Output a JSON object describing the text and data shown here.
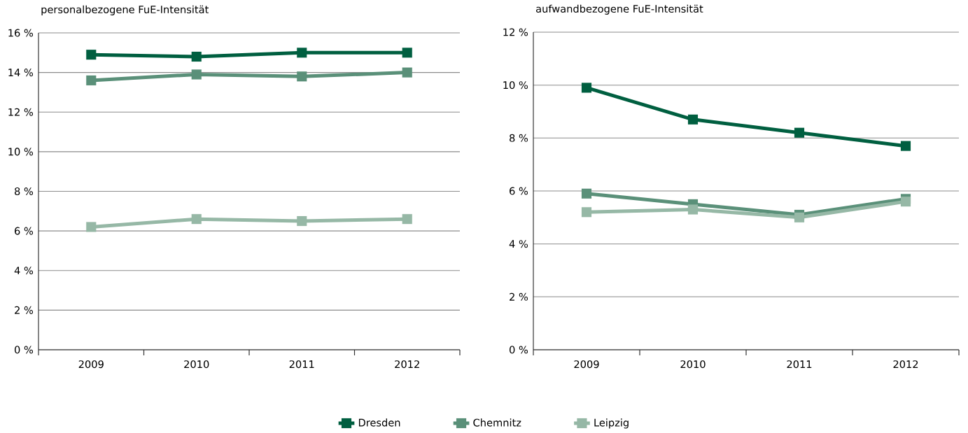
{
  "chart_data": [
    {
      "type": "line",
      "title": "personalbezogene FuE-Intensität",
      "categories": [
        "2009",
        "2010",
        "2011",
        "2012"
      ],
      "series": [
        {
          "name": "Dresden",
          "color": "#005f40",
          "values": [
            14.9,
            14.8,
            15.0,
            15.0
          ]
        },
        {
          "name": "Chemnitz",
          "color": "#5a9079",
          "values": [
            13.6,
            13.9,
            13.8,
            14.0
          ]
        },
        {
          "name": "Leipzig",
          "color": "#96b8a6",
          "values": [
            6.2,
            6.6,
            6.5,
            6.6
          ]
        }
      ],
      "ylim": [
        0,
        16
      ],
      "yticks": [
        {
          "value": 0,
          "label": "0 %"
        },
        {
          "value": 2,
          "label": "2 %"
        },
        {
          "value": 4,
          "label": "4 %"
        },
        {
          "value": 6,
          "label": "6 %"
        },
        {
          "value": 8,
          "label": "8 %"
        },
        {
          "value": 10,
          "label": "10 %"
        },
        {
          "value": 12,
          "label": "12 %"
        },
        {
          "value": 14,
          "label": "14 %"
        },
        {
          "value": 16,
          "label": "16 %"
        }
      ],
      "grid": "y",
      "legend": "bottom",
      "marker": "square",
      "line_style": "solid"
    },
    {
      "type": "line",
      "title": "aufwandbezogene FuE-Intensität",
      "categories": [
        "2009",
        "2010",
        "2011",
        "2012"
      ],
      "series": [
        {
          "color": "#005f40",
          "values": [
            9.9,
            8.7,
            8.2,
            7.7
          ]
        },
        {
          "color": "#5a9079",
          "values": [
            5.9,
            5.5,
            5.1,
            5.7
          ]
        },
        {
          "color": "#96b8a6",
          "values": [
            5.2,
            5.3,
            5.0,
            5.6
          ]
        }
      ],
      "ylim": [
        0,
        12
      ],
      "yticks": [
        {
          "value": 0,
          "label": "0 %"
        },
        {
          "value": 2,
          "label": "2 %"
        },
        {
          "value": 4,
          "label": "4 %"
        },
        {
          "value": 6,
          "label": "6 %"
        },
        {
          "value": 8,
          "label": "8 %"
        },
        {
          "value": 10,
          "label": "10 %"
        },
        {
          "value": 12,
          "label": "12 %"
        }
      ],
      "grid": "y",
      "marker": "square",
      "line_style": "solid"
    }
  ]
}
